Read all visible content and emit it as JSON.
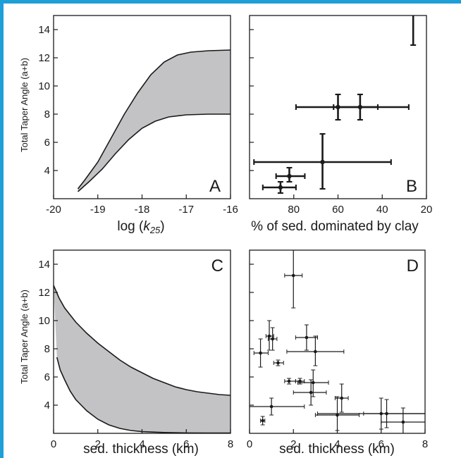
{
  "colors": {
    "border_accent": "#1e9fd8",
    "band_fill": "#c3c3c6",
    "ink": "#1a1a1a"
  },
  "chart_data": [
    {
      "panel": "A",
      "type": "area",
      "xlabel_main": "log (",
      "xlabel_italic": "k",
      "xlabel_sub": "25",
      "xlabel_close": ")",
      "ylabel": "Total Taper Angle (a+b)",
      "xlim": [
        -20,
        -16
      ],
      "ylim": [
        2,
        15
      ],
      "x_ticks": [
        -20,
        -19,
        -18,
        -17,
        -16
      ],
      "y_ticks": [
        4,
        6,
        8,
        10,
        12,
        14
      ],
      "upper_curve": [
        [
          -19.45,
          2.7
        ],
        [
          -19.3,
          3.3
        ],
        [
          -19.0,
          4.6
        ],
        [
          -18.7,
          6.3
        ],
        [
          -18.4,
          8.0
        ],
        [
          -18.1,
          9.5
        ],
        [
          -17.8,
          10.8
        ],
        [
          -17.5,
          11.7
        ],
        [
          -17.2,
          12.2
        ],
        [
          -16.9,
          12.4
        ],
        [
          -16.5,
          12.5
        ],
        [
          -16.0,
          12.55
        ]
      ],
      "lower_curve": [
        [
          -19.45,
          2.5
        ],
        [
          -19.2,
          3.2
        ],
        [
          -18.9,
          4.1
        ],
        [
          -18.6,
          5.2
        ],
        [
          -18.3,
          6.2
        ],
        [
          -18.0,
          7.0
        ],
        [
          -17.7,
          7.5
        ],
        [
          -17.4,
          7.8
        ],
        [
          -17.0,
          7.95
        ],
        [
          -16.5,
          8.0
        ],
        [
          -16.0,
          8.0
        ]
      ]
    },
    {
      "panel": "B",
      "type": "scatter",
      "xlabel": "% of sed. dominated by clay",
      "xlim": [
        100,
        20
      ],
      "ylim": [
        2,
        15
      ],
      "x_ticks": [
        80,
        60,
        40,
        20
      ],
      "y_ticks": [
        4,
        6,
        8,
        10,
        12,
        14
      ],
      "points": [
        {
          "x": 26,
          "y": 15.0,
          "xerr": [
            26,
            26
          ],
          "yerr": [
            12.9,
            15.6
          ],
          "open_top": true
        },
        {
          "x": 60,
          "y": 8.5,
          "xerr": [
            79,
            42
          ],
          "yerr": [
            7.6,
            9.4
          ]
        },
        {
          "x": 50,
          "y": 8.5,
          "xerr": [
            62,
            28
          ],
          "yerr": [
            7.6,
            9.4
          ]
        },
        {
          "x": 67,
          "y": 4.6,
          "xerr": [
            98,
            36
          ],
          "yerr": [
            2.7,
            6.6
          ]
        },
        {
          "x": 82,
          "y": 3.6,
          "xerr": [
            88,
            75
          ],
          "yerr": [
            3.2,
            4.2
          ]
        },
        {
          "x": 86,
          "y": 2.8,
          "xerr": [
            94,
            79
          ],
          "yerr": [
            2.4,
            3.2
          ]
        }
      ]
    },
    {
      "panel": "C",
      "type": "area",
      "xlabel": "sed. thickness (km)",
      "ylabel": "Total Taper Angle (a+b)",
      "xlim": [
        0,
        8
      ],
      "ylim": [
        2,
        15
      ],
      "x_ticks": [
        0,
        2,
        4,
        6,
        8
      ],
      "y_ticks": [
        4,
        6,
        8,
        10,
        12,
        14
      ],
      "upper_curve": [
        [
          0.0,
          12.5
        ],
        [
          0.25,
          11.6
        ],
        [
          0.5,
          10.9
        ],
        [
          1.0,
          9.9
        ],
        [
          1.5,
          9.1
        ],
        [
          2.0,
          8.4
        ],
        [
          2.5,
          7.8
        ],
        [
          3.0,
          7.2
        ],
        [
          3.5,
          6.7
        ],
        [
          4.0,
          6.3
        ],
        [
          4.5,
          5.9
        ],
        [
          5.0,
          5.6
        ],
        [
          5.5,
          5.3
        ],
        [
          6.0,
          5.1
        ],
        [
          6.5,
          4.95
        ],
        [
          7.0,
          4.85
        ],
        [
          7.5,
          4.75
        ],
        [
          8.0,
          4.7
        ]
      ],
      "lower_curve": [
        [
          0.15,
          7.4
        ],
        [
          0.3,
          6.5
        ],
        [
          0.5,
          5.8
        ],
        [
          0.75,
          5.0
        ],
        [
          1.0,
          4.4
        ],
        [
          1.5,
          3.6
        ],
        [
          2.0,
          3.0
        ],
        [
          2.5,
          2.6
        ],
        [
          3.0,
          2.35
        ],
        [
          3.5,
          2.2
        ],
        [
          4.0,
          2.12
        ],
        [
          5.0,
          2.06
        ],
        [
          6.0,
          2.03
        ],
        [
          7.0,
          2.02
        ],
        [
          8.0,
          2.02
        ]
      ]
    },
    {
      "panel": "D",
      "type": "scatter",
      "xlabel": "sed. thickness (km)",
      "xlim": [
        0,
        8
      ],
      "ylim": [
        2,
        15
      ],
      "x_ticks": [
        0,
        2,
        4,
        6,
        8
      ],
      "y_ticks": [
        4,
        6,
        8,
        10,
        12,
        14
      ],
      "points": [
        {
          "x": 2.0,
          "y": 13.2,
          "xerr": [
            1.6,
            2.4
          ],
          "yerr": [
            10.9,
            15.2
          ]
        },
        {
          "x": 0.9,
          "y": 8.9,
          "xerr": [
            0.75,
            1.1
          ],
          "yerr": [
            7.9,
            10.0
          ]
        },
        {
          "x": 1.05,
          "y": 8.7,
          "xerr": [
            0.85,
            1.25
          ],
          "yerr": [
            7.9,
            9.5
          ]
        },
        {
          "x": 2.6,
          "y": 8.8,
          "xerr": [
            2.1,
            3.1
          ],
          "yerr": [
            7.9,
            9.7
          ]
        },
        {
          "x": 0.5,
          "y": 7.7,
          "xerr": [
            0.2,
            0.85
          ],
          "yerr": [
            6.7,
            8.7
          ]
        },
        {
          "x": 3.0,
          "y": 7.8,
          "xerr": [
            1.7,
            4.3
          ],
          "yerr": [
            6.8,
            8.9
          ]
        },
        {
          "x": 1.3,
          "y": 7.0,
          "xerr": [
            1.1,
            1.55
          ],
          "yerr": [
            6.8,
            7.2
          ]
        },
        {
          "x": 1.8,
          "y": 5.7,
          "xerr": [
            1.6,
            2.1
          ],
          "yerr": [
            5.5,
            5.9
          ]
        },
        {
          "x": 2.3,
          "y": 5.7,
          "xerr": [
            2.1,
            2.5
          ],
          "yerr": [
            5.5,
            5.9
          ]
        },
        {
          "x": 2.9,
          "y": 5.6,
          "xerr": [
            2.2,
            3.6
          ],
          "yerr": [
            4.6,
            6.5
          ]
        },
        {
          "x": 2.8,
          "y": 4.9,
          "xerr": [
            2.0,
            3.5
          ],
          "yerr": [
            4.0,
            5.8
          ]
        },
        {
          "x": 4.2,
          "y": 4.5,
          "xerr": [
            3.9,
            4.5
          ],
          "yerr": [
            3.5,
            5.5
          ]
        },
        {
          "x": 1.0,
          "y": 3.9,
          "xerr": [
            0.0,
            2.5
          ],
          "yerr": [
            3.3,
            4.5
          ]
        },
        {
          "x": 4.0,
          "y": 3.3,
          "xerr": [
            3.0,
            5.0
          ],
          "yerr": [
            2.2,
            4.6
          ]
        },
        {
          "x": 6.0,
          "y": 3.4,
          "xerr": [
            3.1,
            8.0
          ],
          "yerr": [
            2.3,
            4.5
          ]
        },
        {
          "x": 6.25,
          "y": 3.4,
          "xerr": [
            5.2,
            8.0
          ],
          "yerr": [
            2.4,
            4.4
          ]
        },
        {
          "x": 7.0,
          "y": 2.8,
          "xerr": [
            6.0,
            8.0
          ],
          "yerr": [
            2.0,
            3.8
          ]
        },
        {
          "x": 0.6,
          "y": 2.9,
          "xerr": [
            0.5,
            0.7
          ],
          "yerr": [
            2.6,
            3.2
          ]
        }
      ]
    }
  ]
}
